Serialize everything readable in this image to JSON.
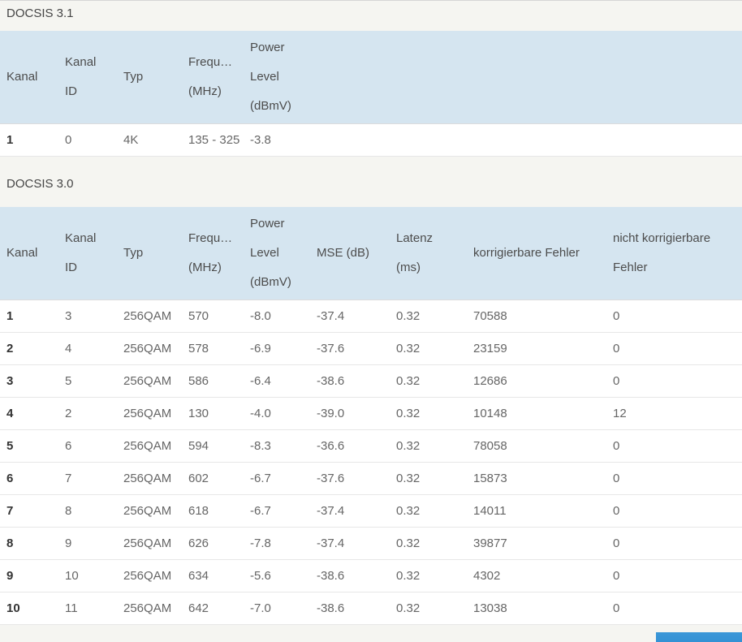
{
  "page": {
    "header_bg_color": "#d5e5f0",
    "accent_blue": "#2d8ed3",
    "background_color": "#f5f5f1"
  },
  "sections": [
    {
      "title": "DOCSIS 3.1",
      "columns": [
        {
          "name": "kanal",
          "label_lines": [
            "Kanal"
          ]
        },
        {
          "name": "kanal-id",
          "label_lines": [
            "Kanal ID"
          ]
        },
        {
          "name": "typ",
          "label_lines": [
            "Typ"
          ]
        },
        {
          "name": "frequenz",
          "label_lines": [
            "Frequ…",
            "(MHz)"
          ]
        },
        {
          "name": "power-level",
          "label_lines": [
            "Power",
            "Level",
            "(dBmV)"
          ]
        }
      ],
      "rows": [
        [
          "1",
          "0",
          "4K",
          "135 - 325",
          "-3.8"
        ]
      ]
    },
    {
      "title": "DOCSIS 3.0",
      "columns": [
        {
          "name": "kanal",
          "label_lines": [
            "Kanal"
          ]
        },
        {
          "name": "kanal-id",
          "label_lines": [
            "Kanal ID"
          ]
        },
        {
          "name": "typ",
          "label_lines": [
            "Typ"
          ]
        },
        {
          "name": "frequenz",
          "label_lines": [
            "Frequ…",
            "(MHz)"
          ]
        },
        {
          "name": "power-level",
          "label_lines": [
            "Power",
            "Level",
            "(dBmV)"
          ]
        },
        {
          "name": "mse",
          "label_lines": [
            "MSE (dB)"
          ]
        },
        {
          "name": "latenz",
          "label_lines": [
            "Latenz",
            "(ms)"
          ]
        },
        {
          "name": "korrigierbare-fehler",
          "label_lines": [
            "korrigierbare Fehler"
          ]
        },
        {
          "name": "nicht-korrigierbare-fehler",
          "label_lines": [
            "nicht korrigierbare",
            "Fehler"
          ]
        }
      ],
      "rows": [
        [
          "1",
          "3",
          "256QAM",
          "570",
          "-8.0",
          "-37.4",
          "0.32",
          "70588",
          "0"
        ],
        [
          "2",
          "4",
          "256QAM",
          "578",
          "-6.9",
          "-37.6",
          "0.32",
          "23159",
          "0"
        ],
        [
          "3",
          "5",
          "256QAM",
          "586",
          "-6.4",
          "-38.6",
          "0.32",
          "12686",
          "0"
        ],
        [
          "4",
          "2",
          "256QAM",
          "130",
          "-4.0",
          "-39.0",
          "0.32",
          "10148",
          "12"
        ],
        [
          "5",
          "6",
          "256QAM",
          "594",
          "-8.3",
          "-36.6",
          "0.32",
          "78058",
          "0"
        ],
        [
          "6",
          "7",
          "256QAM",
          "602",
          "-6.7",
          "-37.6",
          "0.32",
          "15873",
          "0"
        ],
        [
          "7",
          "8",
          "256QAM",
          "618",
          "-6.7",
          "-37.4",
          "0.32",
          "14011",
          "0"
        ],
        [
          "8",
          "9",
          "256QAM",
          "626",
          "-7.8",
          "-37.4",
          "0.32",
          "39877",
          "0"
        ],
        [
          "9",
          "10",
          "256QAM",
          "634",
          "-5.6",
          "-38.6",
          "0.32",
          "4302",
          "0"
        ],
        [
          "10",
          "11",
          "256QAM",
          "642",
          "-7.0",
          "-38.6",
          "0.32",
          "13038",
          "0"
        ]
      ]
    }
  ],
  "footer": {
    "button_label": ""
  }
}
